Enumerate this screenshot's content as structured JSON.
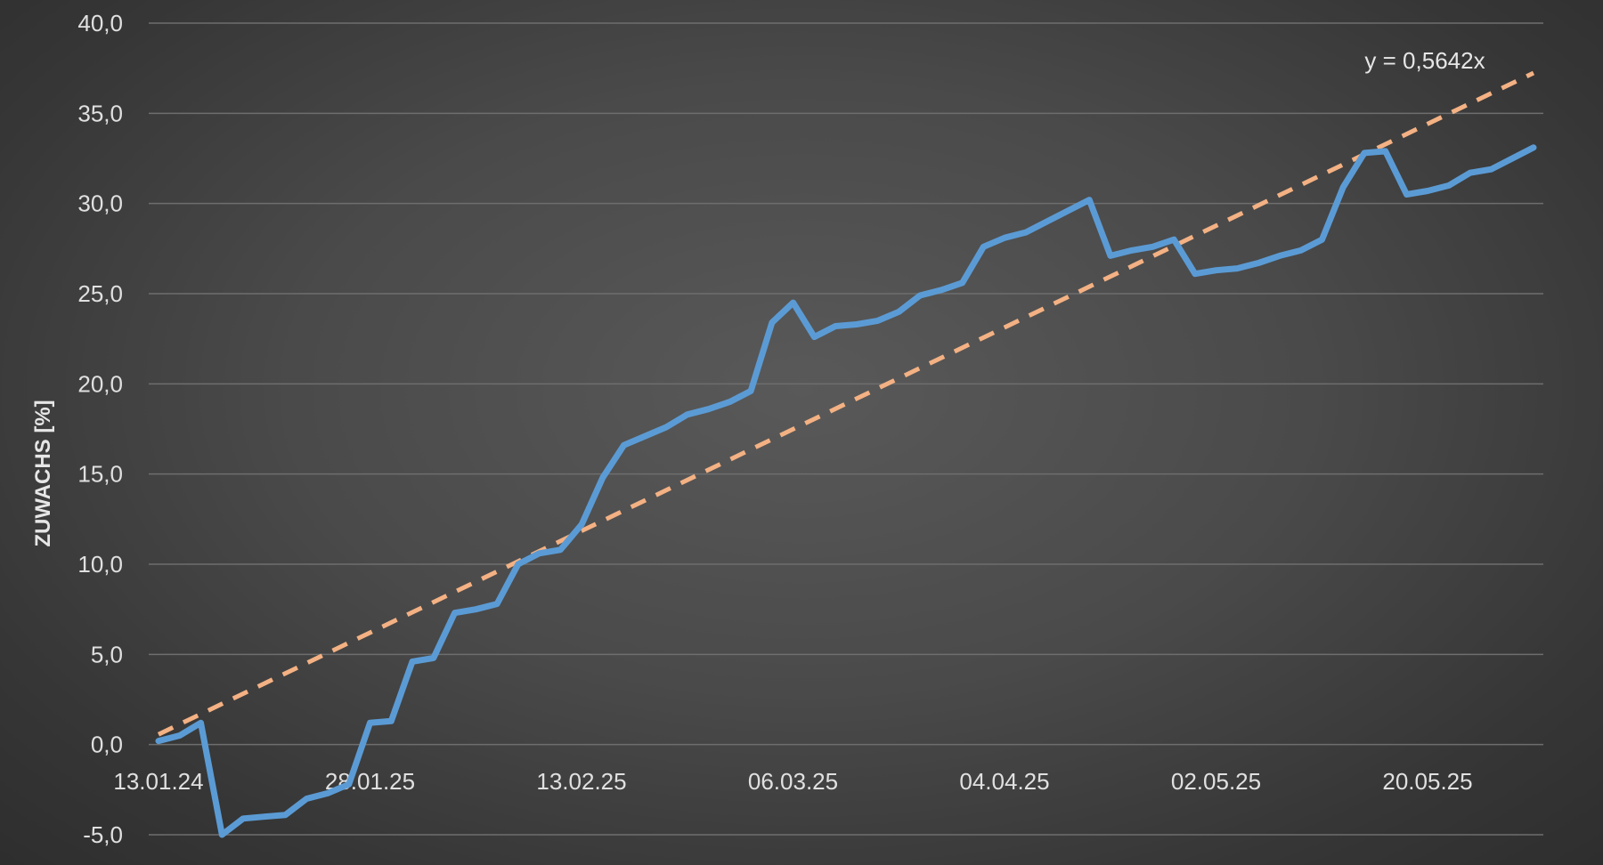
{
  "chart_data": {
    "type": "line",
    "title": "",
    "xlabel": "",
    "ylabel": "ZUWACHS [%]",
    "ylim": [
      -5,
      40
    ],
    "yticks": [
      "-5,0",
      "0,0",
      "5,0",
      "10,0",
      "15,0",
      "20,0",
      "25,0",
      "30,0",
      "35,0",
      "40,0"
    ],
    "xtick_labels": [
      "13.01.24",
      "28.01.25",
      "13.02.25",
      "06.03.25",
      "04.04.25",
      "02.05.25",
      "20.05.25"
    ],
    "grid": true,
    "line_color": "#5b9bd5",
    "trend_color": "#f4b183",
    "series": [
      {
        "values": [
          0.2,
          0.5,
          1.2,
          -5.0,
          -4.1,
          -4.0,
          -3.9,
          -3.0,
          -2.7,
          -2.2,
          1.2,
          1.3,
          4.6,
          4.8,
          7.3,
          7.5,
          7.8,
          10.0,
          10.6,
          10.8,
          12.2,
          14.8,
          16.6,
          17.1,
          17.6,
          18.3,
          18.6,
          19.0,
          19.6,
          23.4,
          24.5,
          22.6,
          23.2,
          23.3,
          23.5,
          24.0,
          24.9,
          25.2,
          25.6,
          27.6,
          28.1,
          28.4,
          29.0,
          29.6,
          30.2,
          27.1,
          27.4,
          27.6,
          28.0,
          26.1,
          26.3,
          26.4,
          26.7,
          27.1,
          27.4,
          28.0,
          30.9,
          32.8,
          32.9,
          30.5,
          30.7,
          31.0,
          31.7,
          31.9,
          32.5,
          33.1
        ]
      }
    ],
    "trendline": {
      "label": "y = 0,5642x",
      "slope": 0.5642
    }
  }
}
